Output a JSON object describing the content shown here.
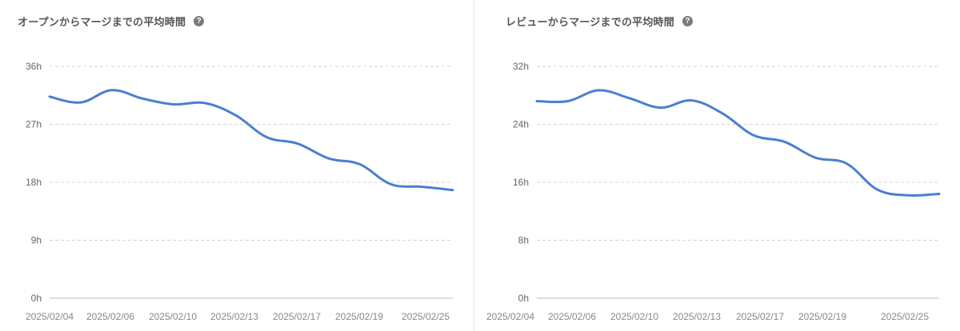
{
  "help_glyph": "?",
  "colors": {
    "line": "#4a7fcf",
    "grid": "#d4d4d4",
    "axis": "#bdbdbd",
    "help_icon": "#7a7a7a"
  },
  "panels": [
    {
      "title": "オープンからマージまでの平均時間"
    },
    {
      "title": "レビューからマージまでの平均時間"
    }
  ],
  "chart_data": [
    {
      "type": "line",
      "title": "オープンからマージまでの平均時間",
      "x_tick_labels": [
        "2025/02/04",
        "2025/02/06",
        "2025/02/10",
        "2025/02/13",
        "2025/02/17",
        "2025/02/19",
        "2025/02/25"
      ],
      "y_tick_labels": [
        "0h",
        "9h",
        "18h",
        "27h",
        "36h"
      ],
      "ylim": [
        0,
        36
      ],
      "grid": true,
      "series": [
        {
          "values": [
            31.3,
            30.4,
            32.3,
            31.0,
            30.1,
            30.3,
            28.4,
            25.0,
            24.0,
            21.7,
            20.8,
            17.7,
            17.3,
            16.8
          ]
        }
      ]
    },
    {
      "type": "line",
      "title": "レビューからマージまでの平均時間",
      "x_tick_labels": [
        "2025/02/04",
        "2025/02/06",
        "2025/02/10",
        "2025/02/13",
        "2025/02/17",
        "2025/02/19",
        "2025/02/25"
      ],
      "y_tick_labels": [
        "0h",
        "8h",
        "16h",
        "24h",
        "32h"
      ],
      "ylim": [
        0,
        32
      ],
      "grid": true,
      "series": [
        {
          "values": [
            27.2,
            27.2,
            28.7,
            27.6,
            26.3,
            27.3,
            25.5,
            22.5,
            21.6,
            19.4,
            18.6,
            15.0,
            14.2,
            14.4
          ]
        }
      ]
    }
  ]
}
